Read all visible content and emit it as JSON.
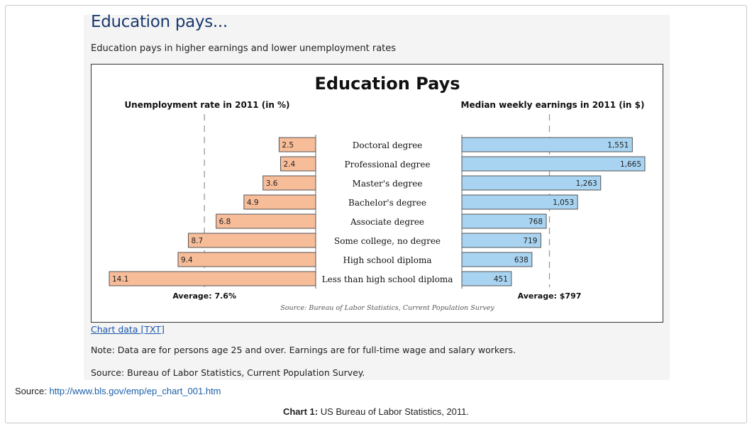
{
  "panel": {
    "heading": "Education pays...",
    "subheading": "Education pays in higher earnings and lower unemployment rates",
    "chart_link": "Chart data [TXT]",
    "note": "Note: Data are for persons age 25 and over. Earnings are for full-time wage and salary workers.",
    "source": "Source: Bureau of Labor Statistics, Current Population Survey."
  },
  "page": {
    "source_prefix": "Source:",
    "source_url": "http://www.bls.gov/emp/ep_chart_001.htm",
    "caption_label": "Chart 1:",
    "caption_text": "US Bureau of Labor Statistics, 2011."
  },
  "colors": {
    "unemployment_bar": "#f7bc98",
    "earnings_bar": "#a8d4f2",
    "bar_outline": "#555555",
    "average_line": "#999999"
  },
  "chart_data": {
    "type": "bar",
    "title": "Education Pays",
    "categories": [
      "Doctoral degree",
      "Professional degree",
      "Master's degree",
      "Bachelor's degree",
      "Associate degree",
      "Some college, no degree",
      "High school diploma",
      "Less than high school diploma"
    ],
    "series": [
      {
        "name": "Unemployment rate in 2011 (in %)",
        "values": [
          2.5,
          2.4,
          3.6,
          4.9,
          6.8,
          8.7,
          9.4,
          14.1
        ],
        "labels": [
          "2.5",
          "2.4",
          "3.6",
          "4.9",
          "6.8",
          "8.7",
          "9.4",
          "14.1"
        ],
        "average": 7.6,
        "average_label": "Average: 7.6%",
        "xlim": [
          0,
          15
        ]
      },
      {
        "name": "Median weekly earnings in 2011 (in $)",
        "values": [
          1551,
          1665,
          1263,
          1053,
          768,
          719,
          638,
          451
        ],
        "labels": [
          "1,551",
          "1,665",
          "1,263",
          "1,053",
          "768",
          "719",
          "638",
          "451"
        ],
        "average": 797,
        "average_label": "Average: $797",
        "xlim": [
          0,
          1750
        ]
      }
    ],
    "source": "Source: Bureau of Labor Statistics, Current Population Survey"
  }
}
